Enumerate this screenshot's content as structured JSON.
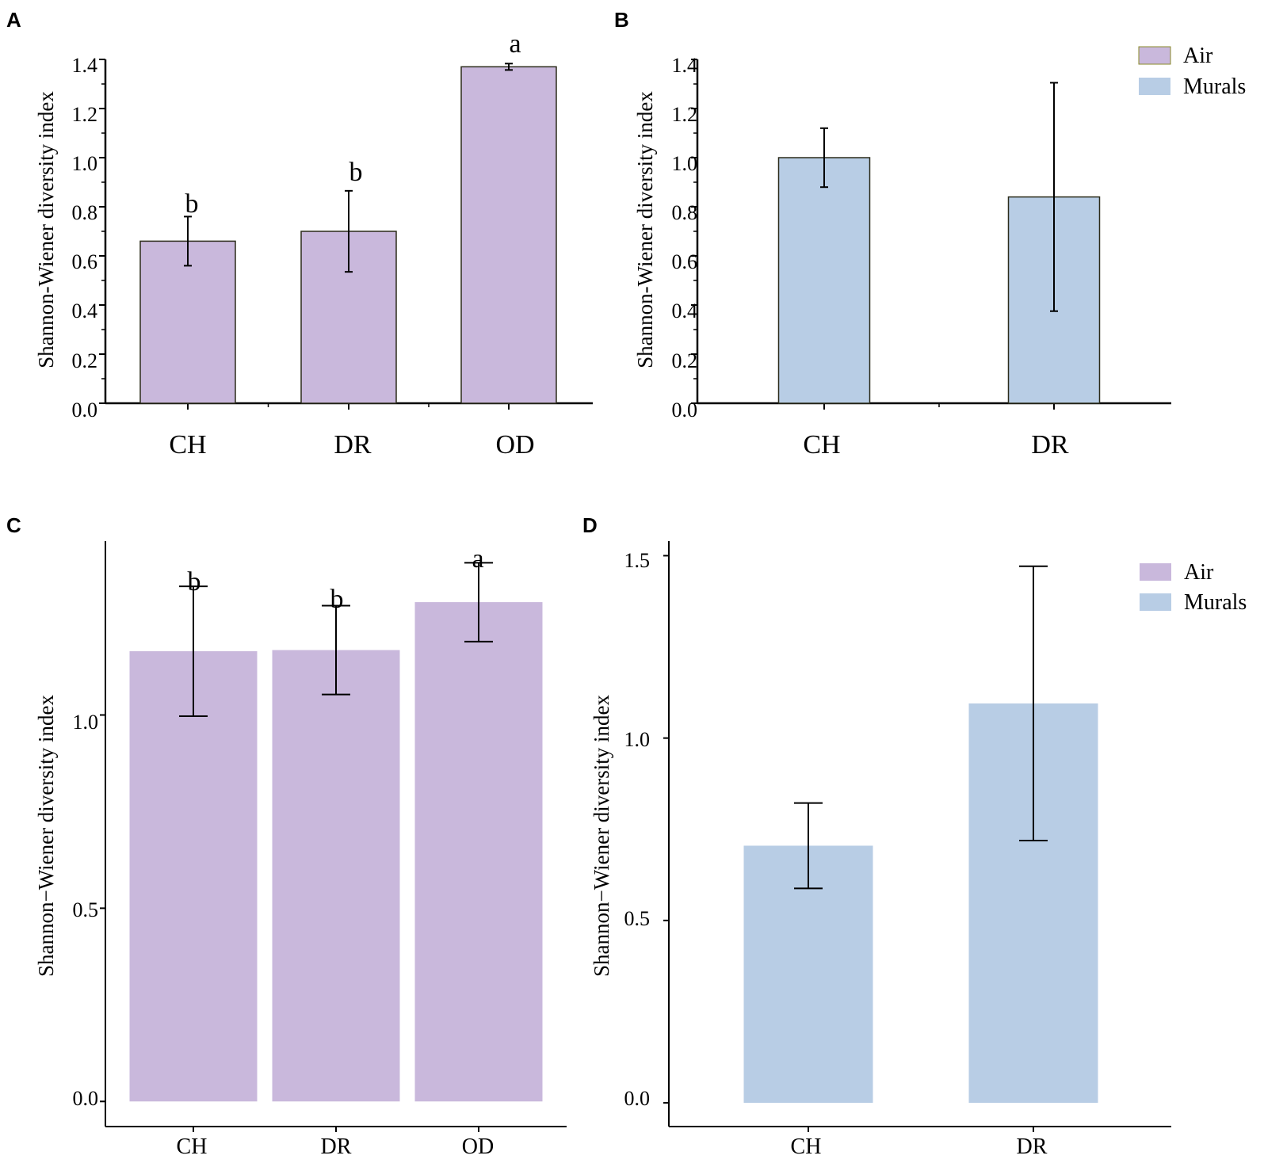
{
  "panels": [
    {
      "label": "A",
      "chart_data": {
        "type": "bar",
        "style": "origin",
        "categories": [
          "CH",
          "DR",
          "OD"
        ],
        "values": [
          0.66,
          0.7,
          1.37
        ],
        "errors": [
          0.1,
          0.165,
          0.013
        ],
        "significance": [
          "b",
          "b",
          "a"
        ],
        "ylabel": "Shannon-Wiener diversity index",
        "ylim": [
          0,
          1.4
        ],
        "yticks": [
          "0.0",
          "0.2",
          "0.4",
          "0.6",
          "0.8",
          "1.0",
          "1.2",
          "1.4"
        ],
        "color": "#c9b8dc"
      }
    },
    {
      "label": "B",
      "chart_data": {
        "type": "bar",
        "style": "origin",
        "categories": [
          "CH",
          "DR"
        ],
        "values": [
          1.0,
          0.84
        ],
        "errors": [
          0.12,
          0.465
        ],
        "significance": [
          "",
          ""
        ],
        "ylabel": "Shannon-Wiener diversity index",
        "ylim": [
          0,
          1.4
        ],
        "yticks": [
          "0.0",
          "0.2",
          "0.4",
          "0.6",
          "0.8",
          "1.0",
          "1.2",
          "1.4"
        ],
        "color": "#b8cde5",
        "legend": [
          {
            "name": "Air",
            "color": "#c9b8dc"
          },
          {
            "name": "Murals",
            "color": "#b8cde5"
          }
        ]
      }
    },
    {
      "label": "C",
      "chart_data": {
        "type": "bar",
        "style": "ggplot",
        "categories": [
          "CH",
          "DR",
          "OD"
        ],
        "values": [
          1.165,
          1.168,
          1.292
        ],
        "errors": [
          0.168,
          0.115,
          0.102
        ],
        "significance": [
          "b",
          "b",
          "a"
        ],
        "ylabel": "Shannon−Wiener diversity index",
        "ylim": [
          -0.065,
          1.45
        ],
        "yticks": [
          "0.0",
          "0.5",
          "1.0"
        ],
        "color": "#c9b8dc"
      }
    },
    {
      "label": "D",
      "chart_data": {
        "type": "bar",
        "style": "ggplot",
        "categories": [
          "CH",
          "DR"
        ],
        "values": [
          0.705,
          1.095
        ],
        "errors": [
          0.117,
          0.376
        ],
        "significance": [
          "",
          ""
        ],
        "ylabel": "Shannon−Wiener diversity index",
        "ylim": [
          -0.065,
          1.54
        ],
        "yticks": [
          "0.0",
          "0.5",
          "1.0",
          "1.5"
        ],
        "color": "#b8cde5",
        "legend": [
          {
            "name": "Air",
            "color": "#c9b8dc"
          },
          {
            "name": "Murals",
            "color": "#b8cde5"
          }
        ]
      }
    }
  ]
}
